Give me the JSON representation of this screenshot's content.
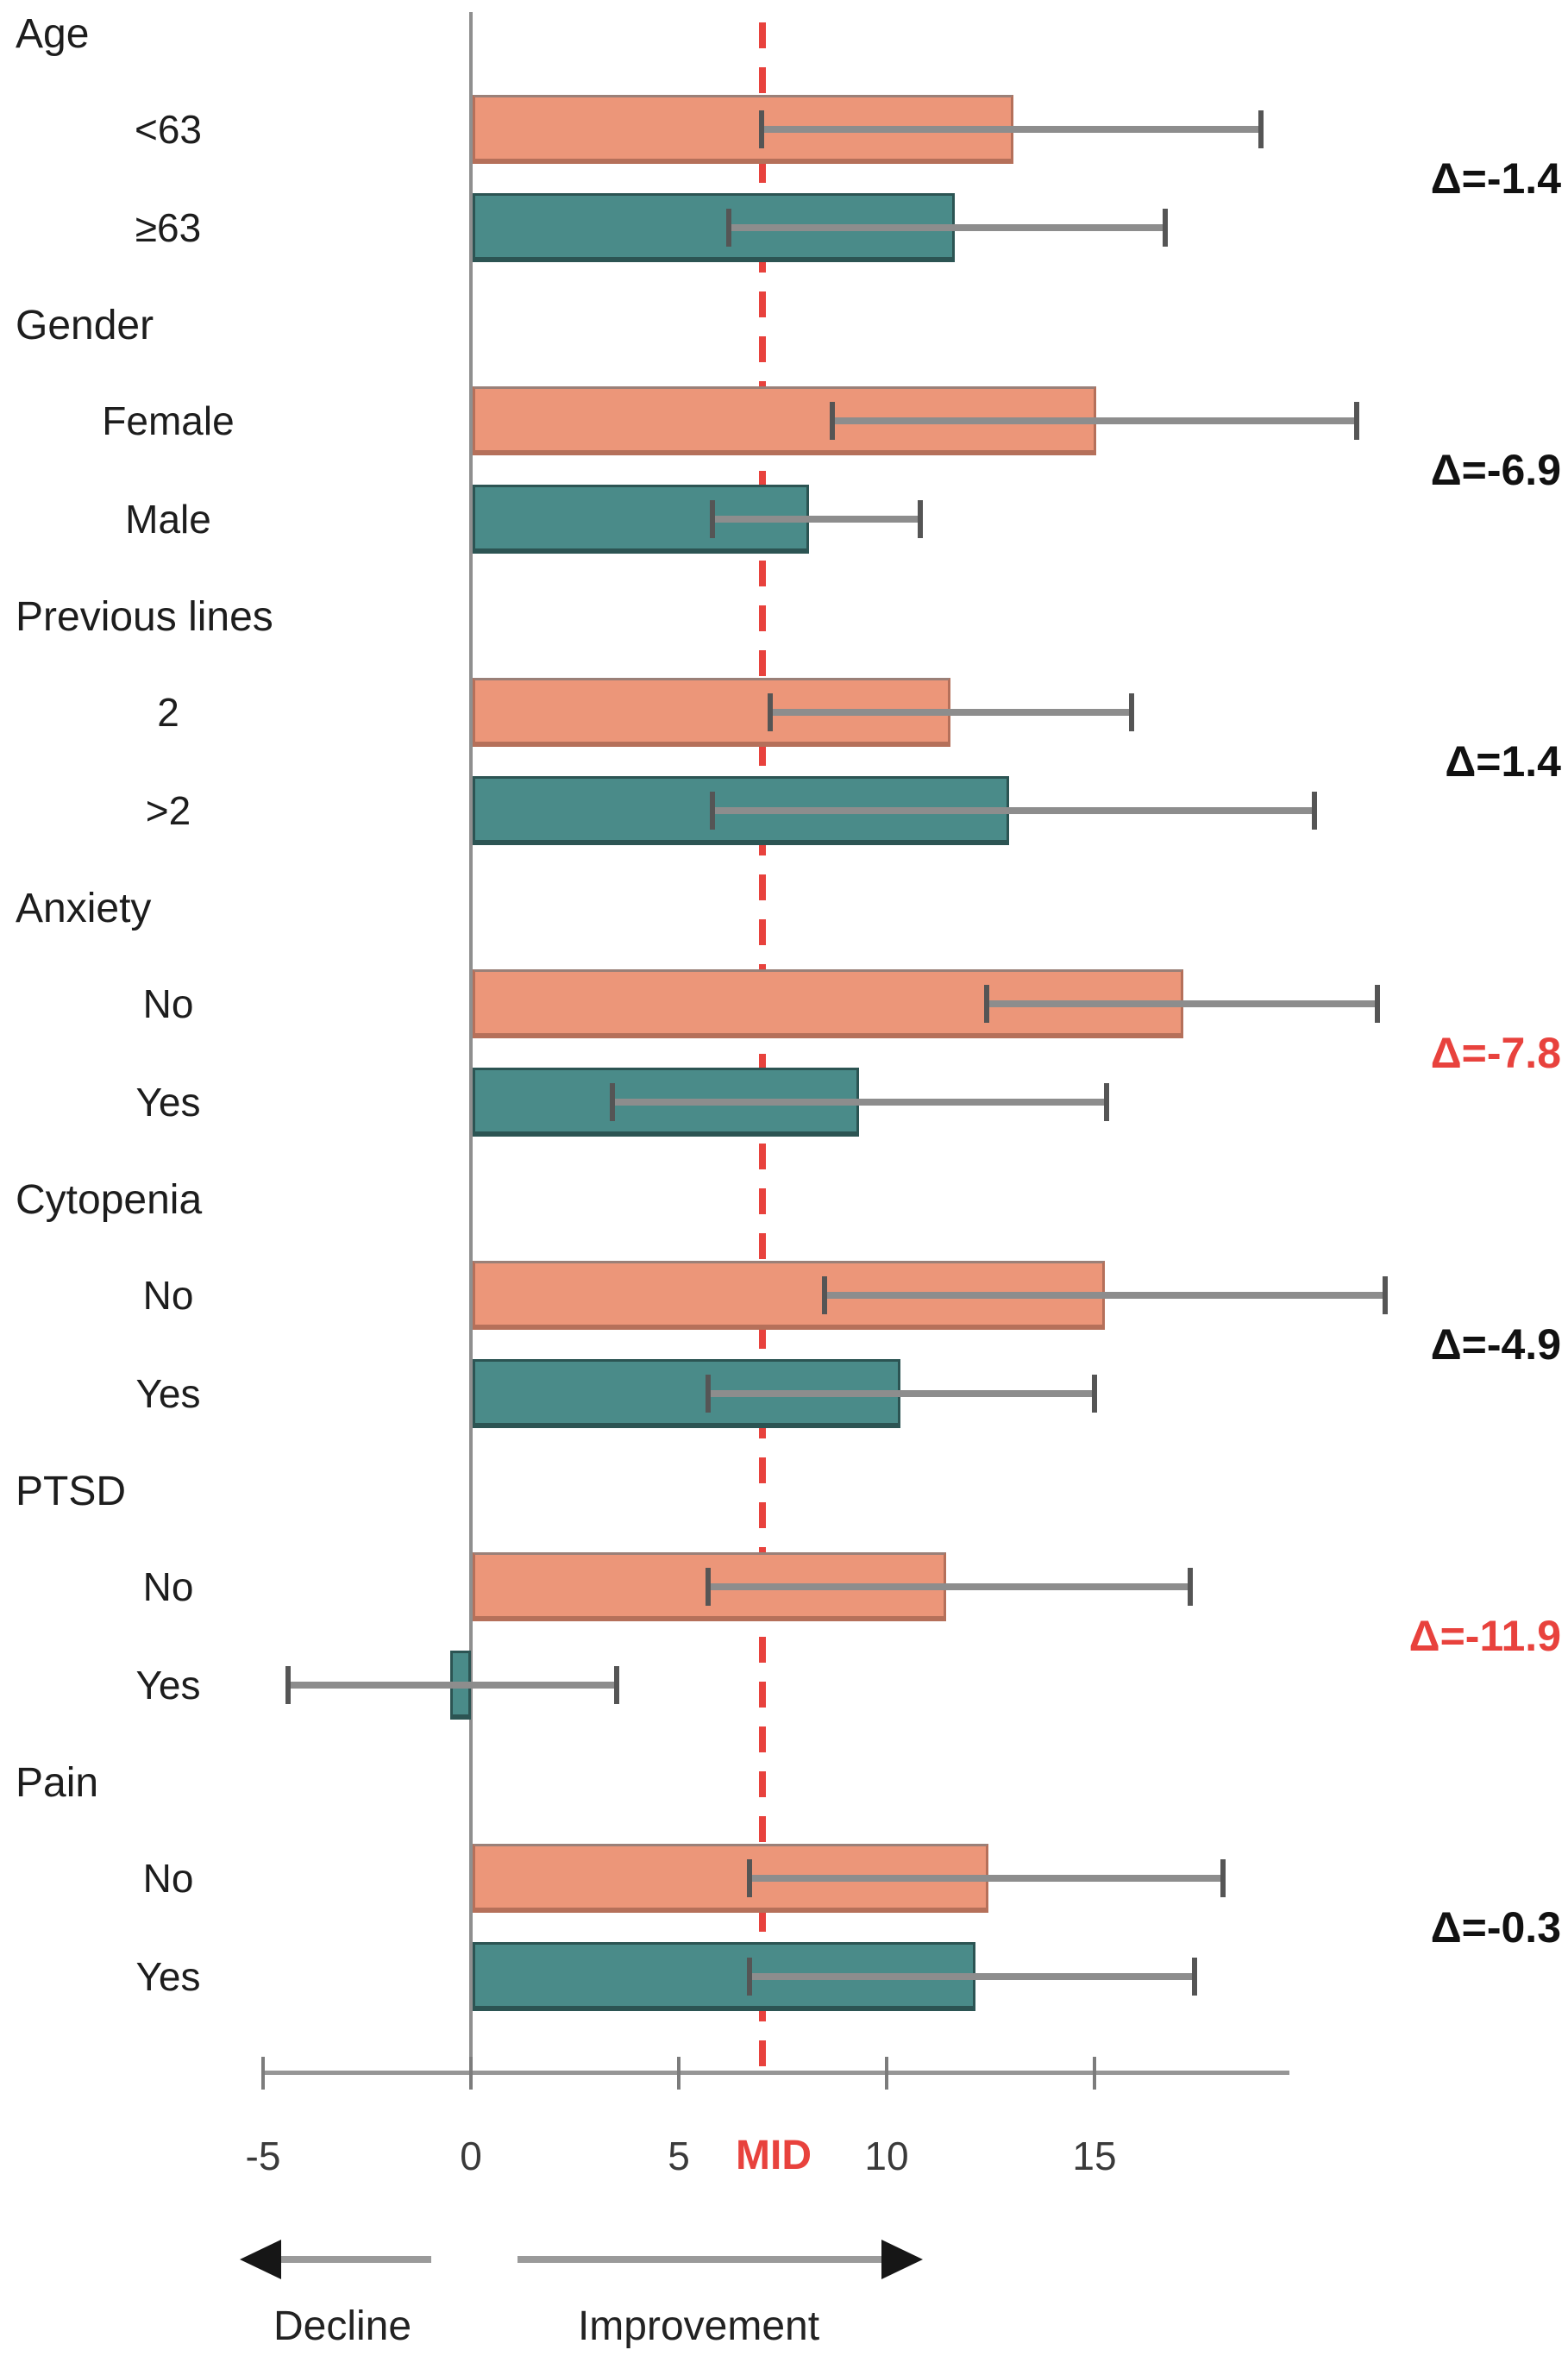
{
  "chart_data": {
    "type": "bar",
    "orientation": "horizontal",
    "title": "",
    "xlabel": "",
    "x_axis": {
      "tick_values": [
        -5,
        0,
        5,
        10,
        15
      ],
      "tick_labels": [
        "-5",
        "0",
        "5",
        "10",
        "15"
      ],
      "range": [
        -5,
        19.7
      ],
      "grid": false
    },
    "mid_reference": {
      "value": 7,
      "label": "MID",
      "color": "#e8423d"
    },
    "series_style": {
      "first_fill": "#ec9679",
      "second_fill": "#4a8b89",
      "delta_normal_color": "#111111",
      "delta_highlight_color": "#e8423d"
    },
    "groups": [
      {
        "label": "Age",
        "rows": [
          {
            "label": "<63",
            "value": 13.0,
            "ci_low": 7.0,
            "ci_high": 19.0,
            "series": "first"
          },
          {
            "label": "≥63",
            "value": 11.6,
            "ci_low": 6.2,
            "ci_high": 16.7,
            "series": "second"
          }
        ],
        "delta": "Δ=-1.4",
        "delta_highlight": false
      },
      {
        "label": "Gender",
        "rows": [
          {
            "label": "Female",
            "value": 15.0,
            "ci_low": 8.7,
            "ci_high": 21.3,
            "series": "first"
          },
          {
            "label": "Male",
            "value": 8.1,
            "ci_low": 5.8,
            "ci_high": 10.8,
            "series": "second"
          }
        ],
        "delta": "Δ=-6.9",
        "delta_highlight": false
      },
      {
        "label": "Previous lines",
        "rows": [
          {
            "label": "2",
            "value": 11.5,
            "ci_low": 7.2,
            "ci_high": 15.9,
            "series": "first"
          },
          {
            "label": ">2",
            "value": 12.9,
            "ci_low": 5.8,
            "ci_high": 20.3,
            "series": "second"
          }
        ],
        "delta": "Δ=1.4",
        "delta_highlight": false
      },
      {
        "label": "Anxiety",
        "rows": [
          {
            "label": "No",
            "value": 17.1,
            "ci_low": 12.4,
            "ci_high": 21.8,
            "series": "first"
          },
          {
            "label": "Yes",
            "value": 9.3,
            "ci_low": 3.4,
            "ci_high": 15.3,
            "series": "second"
          }
        ],
        "delta": "Δ=-7.8",
        "delta_highlight": true
      },
      {
        "label": "Cytopenia",
        "rows": [
          {
            "label": "No",
            "value": 15.2,
            "ci_low": 8.5,
            "ci_high": 22.0,
            "series": "first"
          },
          {
            "label": "Yes",
            "value": 10.3,
            "ci_low": 5.7,
            "ci_high": 15.0,
            "series": "second"
          }
        ],
        "delta": "Δ=-4.9",
        "delta_highlight": false
      },
      {
        "label": "PTSD",
        "rows": [
          {
            "label": "No",
            "value": 11.4,
            "ci_low": 5.7,
            "ci_high": 17.3,
            "series": "first"
          },
          {
            "label": "Yes",
            "value": -0.5,
            "ci_low": -4.4,
            "ci_high": 3.5,
            "series": "second"
          }
        ],
        "delta": "Δ=-11.9",
        "delta_highlight": true
      },
      {
        "label": "Pain",
        "rows": [
          {
            "label": "No",
            "value": 12.4,
            "ci_low": 6.7,
            "ci_high": 18.1,
            "series": "first"
          },
          {
            "label": "Yes",
            "value": 12.1,
            "ci_low": 6.7,
            "ci_high": 17.4,
            "series": "second"
          }
        ],
        "delta": "Δ=-0.3",
        "delta_highlight": false
      }
    ],
    "annotations": {
      "decline_label": "Decline",
      "improvement_label": "Improvement"
    }
  }
}
